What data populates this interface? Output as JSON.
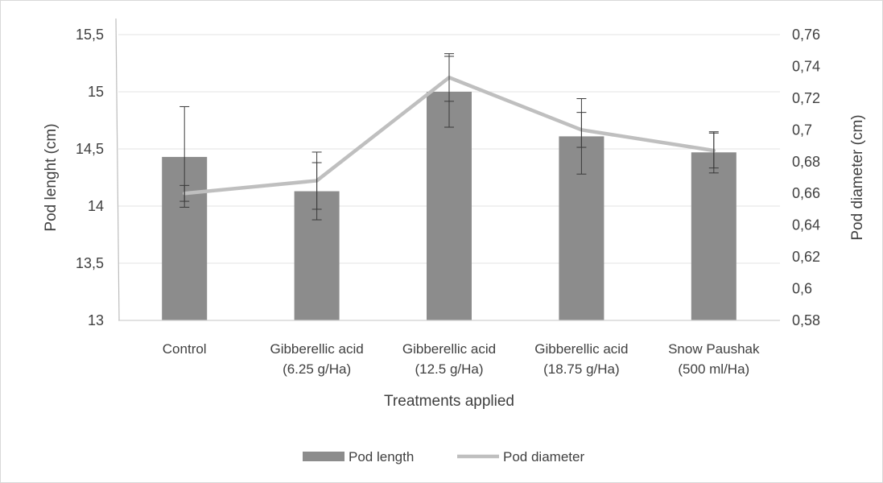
{
  "chart_data": {
    "type": "bar",
    "categories": [
      [
        "Control"
      ],
      [
        "Gibberellic acid",
        "(6.25 g/Ha)"
      ],
      [
        "Gibberellic acid",
        "(12.5 g/Ha)"
      ],
      [
        "Gibberellic acid",
        "(18.75 g/Ha)"
      ],
      [
        "Snow Paushak",
        "(500 ml/Ha)"
      ]
    ],
    "xlabel": "Treatments applied",
    "ylabel": "Pod lenght (cm)",
    "y2label": "Pod diameter (cm)",
    "ylim": [
      13,
      15.5
    ],
    "y2lim": [
      0.58,
      0.76
    ],
    "yticks": [
      "13",
      "13,5",
      "14",
      "14,5",
      "15",
      "15,5"
    ],
    "y2ticks": [
      "0,58",
      "0,6",
      "0,62",
      "0,64",
      "0,66",
      "0,68",
      "0,7",
      "0,72",
      "0,74",
      "0,76"
    ],
    "grid": true,
    "legend_position": "bottom",
    "series": [
      {
        "name": "Pod length",
        "type": "bar",
        "axis": "left",
        "color": "#8c8c8c",
        "values": [
          14.43,
          14.13,
          15.0,
          14.61,
          14.47
        ],
        "error": [
          0.44,
          0.25,
          0.31,
          0.33,
          0.18
        ]
      },
      {
        "name": "Pod diameter",
        "type": "line",
        "axis": "right",
        "color": "#bfbfbf",
        "values": [
          0.66,
          0.668,
          0.733,
          0.7,
          0.687
        ],
        "error": [
          0.005,
          0.018,
          0.015,
          0.011,
          0.011
        ]
      }
    ]
  }
}
